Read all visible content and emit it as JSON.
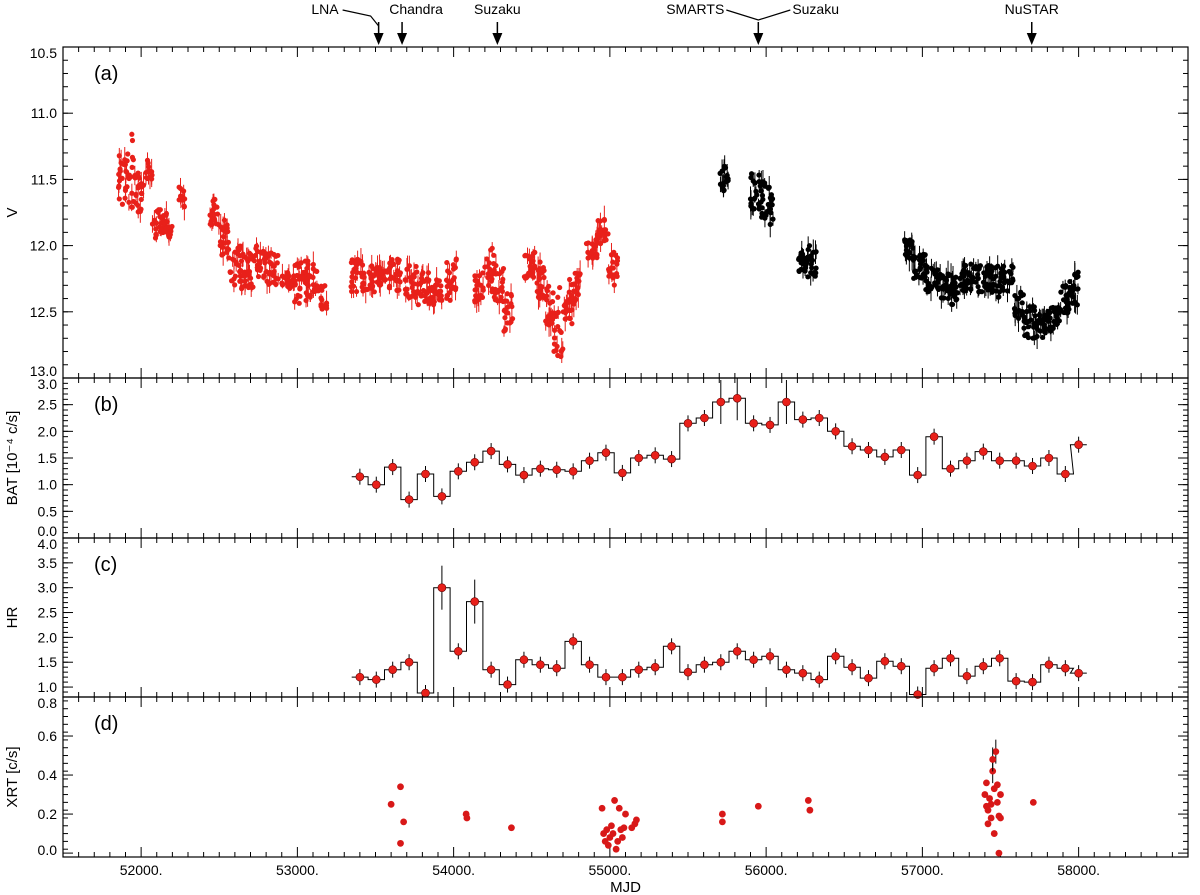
{
  "chart_data": {
    "type": "multi-panel time series",
    "xlabel": "MJD",
    "xlim": [
      51500,
      58700
    ],
    "xticks": [
      52000,
      53000,
      54000,
      55000,
      56000,
      57000,
      58000
    ],
    "xtick_labels": [
      "52000.",
      "53000.",
      "54000.",
      "55000.",
      "56000.",
      "57000.",
      "58000."
    ],
    "colors": {
      "optical_a": "#e8201a",
      "optical_b": "#000000",
      "bat": "#e8201a",
      "hr": "#e8201a",
      "xrt": "#d81818",
      "step": "#000000"
    },
    "observations": [
      {
        "label": "LNA",
        "mjd": 53520
      },
      {
        "label": "Chandra",
        "mjd": 53670
      },
      {
        "label": "Suzaku",
        "mjd": 54280
      },
      {
        "label": "SMARTS",
        "mjd": 55950
      },
      {
        "label": "Suzaku",
        "mjd": 55950
      },
      {
        "label": "NuSTAR",
        "mjd": 57700
      }
    ],
    "panels": [
      {
        "tag": "(a)",
        "ylabel": "V",
        "ylim": [
          13.0,
          10.5
        ],
        "inverted": true,
        "yticks": [
          10.5,
          11.0,
          11.5,
          12.0,
          12.5,
          13.0
        ],
        "ytick_labels": [
          "10.5",
          "11.0",
          "11.5",
          "12.0",
          "12.5",
          "13.0"
        ],
        "series": [
          {
            "color_key": "optical_a",
            "segments": [
              [
                51850,
                51910,
                11.25,
                11.7
              ],
              [
                51910,
                51960,
                11.15,
                11.8
              ],
              [
                51960,
                52020,
                11.45,
                11.75
              ],
              [
                52030,
                52070,
                11.35,
                11.5
              ],
              [
                52070,
                52100,
                11.8,
                11.95
              ],
              [
                52100,
                52140,
                11.7,
                11.95
              ],
              [
                52140,
                52170,
                11.75,
                11.9
              ],
              [
                52170,
                52200,
                11.85,
                11.95
              ],
              [
                52240,
                52280,
                11.55,
                11.75
              ],
              [
                52440,
                52500,
                11.65,
                11.85
              ],
              [
                52500,
                52560,
                11.8,
                12.1
              ],
              [
                52560,
                52640,
                12.0,
                12.3
              ],
              [
                52640,
                52730,
                12.05,
                12.35
              ],
              [
                52730,
                52800,
                12.0,
                12.25
              ],
              [
                52800,
                52880,
                12.05,
                12.3
              ],
              [
                52900,
                52980,
                12.2,
                12.35
              ],
              [
                52980,
                53060,
                12.1,
                12.45
              ],
              [
                53060,
                53140,
                12.1,
                12.4
              ],
              [
                53150,
                53190,
                12.3,
                12.5
              ],
              [
                53340,
                53420,
                12.1,
                12.35
              ],
              [
                53420,
                53500,
                12.15,
                12.35
              ],
              [
                53500,
                53580,
                12.15,
                12.3
              ],
              [
                53580,
                53660,
                12.1,
                12.35
              ],
              [
                53690,
                53770,
                12.15,
                12.4
              ],
              [
                53770,
                53850,
                12.2,
                12.45
              ],
              [
                53850,
                53930,
                12.25,
                12.45
              ],
              [
                53950,
                54020,
                12.1,
                12.45
              ],
              [
                54130,
                54200,
                12.2,
                12.45
              ],
              [
                54200,
                54260,
                12.0,
                12.35
              ],
              [
                54260,
                54320,
                12.15,
                12.45
              ],
              [
                54320,
                54380,
                12.35,
                12.65
              ],
              [
                54450,
                54520,
                12.05,
                12.25
              ],
              [
                54520,
                54580,
                12.1,
                12.4
              ],
              [
                54580,
                54640,
                12.3,
                12.6
              ],
              [
                54640,
                54700,
                12.3,
                12.85
              ],
              [
                54700,
                54760,
                12.25,
                12.6
              ],
              [
                54760,
                54810,
                12.2,
                12.45
              ],
              [
                54850,
                54920,
                11.95,
                12.1
              ],
              [
                54920,
                54990,
                11.8,
                12.0
              ],
              [
                54990,
                55050,
                12.05,
                12.3
              ]
            ]
          },
          {
            "color_key": "optical_b",
            "segments": [
              [
                55700,
                55760,
                11.4,
                11.6
              ],
              [
                55900,
                55960,
                11.45,
                11.75
              ],
              [
                55960,
                56020,
                11.5,
                11.8
              ],
              [
                56020,
                56060,
                11.6,
                11.85
              ],
              [
                56200,
                56260,
                12.05,
                12.2
              ],
              [
                56260,
                56320,
                12.0,
                12.25
              ],
              [
                56880,
                56940,
                11.95,
                12.1
              ],
              [
                56940,
                57020,
                12.05,
                12.25
              ],
              [
                57020,
                57100,
                12.15,
                12.35
              ],
              [
                57100,
                57180,
                12.2,
                12.4
              ],
              [
                57180,
                57260,
                12.2,
                12.45
              ],
              [
                57260,
                57340,
                12.1,
                12.35
              ],
              [
                57340,
                57420,
                12.15,
                12.35
              ],
              [
                57420,
                57500,
                12.15,
                12.4
              ],
              [
                57500,
                57580,
                12.15,
                12.35
              ],
              [
                57580,
                57650,
                12.35,
                12.55
              ],
              [
                57650,
                57720,
                12.45,
                12.7
              ],
              [
                57720,
                57800,
                12.5,
                12.7
              ],
              [
                57800,
                57880,
                12.45,
                12.65
              ],
              [
                57880,
                57940,
                12.3,
                12.55
              ],
              [
                57940,
                58000,
                12.2,
                12.45
              ]
            ]
          }
        ]
      },
      {
        "tag": "(b)",
        "ylabel": "BAT [10⁻⁴ c/s]",
        "ylim": [
          0.0,
          3.0
        ],
        "yticks": [
          0.0,
          0.5,
          1.0,
          1.5,
          2.0,
          2.5,
          3.0
        ],
        "ytick_labels": [
          "0.0",
          "0.5",
          "1.0",
          "1.5",
          "2.0",
          "2.5",
          "3.0"
        ],
        "series": [
          {
            "name": "",
            "color_key": "bat",
            "bin_width": 105,
            "x": [
              53400,
              53505,
              53610,
              53715,
              53820,
              53925,
              54030,
              54135,
              54240,
              54345,
              54450,
              54555,
              54660,
              54765,
              54870,
              54975,
              55080,
              55185,
              55290,
              55395,
              55500,
              55605,
              55710,
              55815,
              55920,
              56025,
              56130,
              56235,
              56340,
              56445,
              56550,
              56655,
              56760,
              56865,
              56970,
              57075,
              57180,
              57285,
              57390,
              57495,
              57600,
              57705,
              57810,
              57915,
              58000
            ],
            "values": [
              1.15,
              1.0,
              1.33,
              0.72,
              1.2,
              0.78,
              1.25,
              1.42,
              1.63,
              1.38,
              1.18,
              1.3,
              1.28,
              1.25,
              1.45,
              1.6,
              1.22,
              1.5,
              1.55,
              1.48,
              2.15,
              2.25,
              2.55,
              2.62,
              2.15,
              2.12,
              2.55,
              2.22,
              2.25,
              2.0,
              1.72,
              1.65,
              1.52,
              1.65,
              1.18,
              1.9,
              1.3,
              1.45,
              1.62,
              1.45,
              1.45,
              1.35,
              1.5,
              1.2,
              1.75
            ]
          }
        ]
      },
      {
        "tag": "(c)",
        "ylabel": "HR",
        "ylim": [
          0.8,
          4.0
        ],
        "yticks": [
          1.0,
          1.5,
          2.0,
          2.5,
          3.0,
          3.5,
          4.0
        ],
        "ytick_labels": [
          "1.0",
          "1.5",
          "2.0",
          "2.5",
          "3.0",
          "3.5",
          "4.0"
        ],
        "series": [
          {
            "name": "",
            "color_key": "hr",
            "bin_width": 105,
            "x": [
              53400,
              53505,
              53610,
              53715,
              53820,
              53925,
              54030,
              54135,
              54240,
              54345,
              54450,
              54555,
              54660,
              54765,
              54870,
              54975,
              55080,
              55185,
              55290,
              55395,
              55500,
              55605,
              55710,
              55815,
              55920,
              56025,
              56130,
              56235,
              56340,
              56445,
              56550,
              56655,
              56760,
              56865,
              56970,
              57075,
              57180,
              57285,
              57390,
              57495,
              57600,
              57705,
              57810,
              57915,
              58000
            ],
            "values": [
              1.2,
              1.15,
              1.35,
              1.5,
              0.88,
              3.0,
              1.72,
              2.72,
              1.35,
              1.05,
              1.55,
              1.45,
              1.38,
              1.92,
              1.45,
              1.2,
              1.2,
              1.35,
              1.4,
              1.82,
              1.3,
              1.45,
              1.5,
              1.72,
              1.55,
              1.62,
              1.35,
              1.28,
              1.15,
              1.62,
              1.4,
              1.18,
              1.52,
              1.42,
              0.85,
              1.38,
              1.58,
              1.22,
              1.42,
              1.58,
              1.12,
              1.1,
              1.45,
              1.38,
              1.28
            ]
          }
        ]
      },
      {
        "tag": "(d)",
        "ylabel": "XRT [c/s]",
        "ylim": [
          -0.02,
          0.8
        ],
        "yticks": [
          0.0,
          0.2,
          0.4,
          0.6,
          0.8
        ],
        "ytick_labels": [
          "0.0",
          "0.2",
          "0.4",
          "0.6",
          "0.8"
        ],
        "series": [
          {
            "name": "",
            "color_key": "xrt",
            "x": [
              53600,
              53660,
              53680,
              53660,
              54080,
              54085,
              54370,
              54950,
              54960,
              54970,
              54980,
              54990,
              55000,
              55010,
              55020,
              55030,
              55040,
              55050,
              55060,
              55070,
              55080,
              55090,
              55100,
              55140,
              55160,
              55170,
              55720,
              55720,
              55950,
              56270,
              56280,
              57400,
              57410,
              57420,
              57430,
              57440,
              57450,
              57460,
              57470,
              57480,
              57490,
              57500,
              57420,
              57440,
              57460,
              57480,
              57500,
              57410,
              57450,
              57490,
              57710
            ],
            "values": [
              0.25,
              0.34,
              0.16,
              0.05,
              0.2,
              0.18,
              0.13,
              0.23,
              0.1,
              0.06,
              0.12,
              0.04,
              0.08,
              0.14,
              0.1,
              0.27,
              0.02,
              0.06,
              0.23,
              0.12,
              0.08,
              0.13,
              0.2,
              0.13,
              0.15,
              0.17,
              0.2,
              0.16,
              0.24,
              0.27,
              0.22,
              0.3,
              0.36,
              0.22,
              0.28,
              0.18,
              0.42,
              0.33,
              0.52,
              0.26,
              0.19,
              0.3,
              0.15,
              0.25,
              0.1,
              0.35,
              0.18,
              0.24,
              0.48,
              0.0,
              0.26
            ]
          }
        ]
      }
    ]
  }
}
